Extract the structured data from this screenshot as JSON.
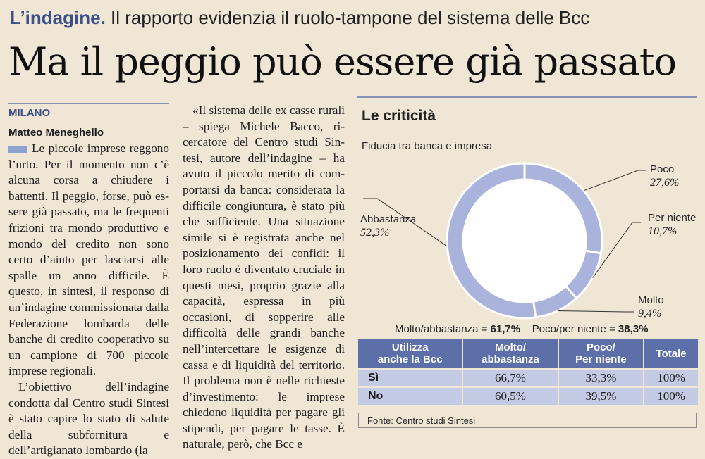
{
  "kicker": {
    "strong": "L’indagine.",
    "text": "Il rapporto evidenzia il ruolo-tampone del sistema delle Bcc"
  },
  "headline": "Ma il peggio può essere già passato",
  "article": {
    "dateline": "MILANO",
    "byline": "Matteo Meneghello",
    "col1": [
      {
        "cls": "first",
        "text": "Le piccole imprese reggo­no l’urto. Per il momento non c’è alcuna corsa a chiudere i battenti. Il peggio, forse, può es­sere già passato, ma le frequen­ti frizioni tra mondo produtti­vo e mondo del credito non so­no certo d’aiuto per lasciarsi al­le spalle un anno difficile. È questo, in sintesi, il responso di un’indagine commissionata dalla Federazione lombarda delle banche di credito coope­rativo su un campione di 700 piccole imprese regionali."
      },
      {
        "cls": "indent",
        "text": "L’obiettivo dell’indagine condotta dal Centro studi Sin­tesi è stato capire lo stato di sa­lute della subfornitura e dell’artigianato lombardo (la"
      }
    ],
    "col2": [
      {
        "cls": "indent",
        "text": "«Il sistema delle ex casse ru­rali – spiega Michele Bacco, ri­cercatore del Centro studi Sin­tesi, autore dell’indagine – ha avuto il piccolo merito di com­portarsi da banca: considera­ta la difficile congiuntura, è stato più che sufficiente. Una situazione simile si è registra­ta anche nel posizionamento dei confidi: il loro ruolo è di­ventato cruciale in questi me­si, proprio grazie alla capaci­tà, espressa in più occasioni, di sopperire alle difficoltà del­le grandi banche nell’intercet­tare le esigenze di cassa e di li­quidità del territorio. Il pro­blema non è nelle richieste d’investimento: le imprese chiedono liquidità per pagare gli stipendi, per pagare le tas­se. È naturale, però, che Bcc e"
      }
    ]
  },
  "infographic": {
    "title": "Le criticità",
    "subtitle": "Fiducia tra banca e impresa",
    "colors": {
      "header": "#5d6fa8",
      "cell": "#c3cbe4",
      "slice": "#a9b3dc"
    },
    "chart_data": {
      "type": "pie",
      "title": "Fiducia tra banca e impresa",
      "slices": [
        {
          "name": "Poco",
          "label": "27,6%",
          "value": 27.6
        },
        {
          "name": "Per niente",
          "label": "10,7%",
          "value": 10.7
        },
        {
          "name": "Molto",
          "label": "9,4%",
          "value": 9.4
        },
        {
          "name": "Abbastanza",
          "label": "52,3%",
          "value": 52.3
        }
      ]
    },
    "summary": {
      "a_label": "Molto/abbastanza =",
      "a_value": "61,7%",
      "b_label": "Poco/per niente =",
      "b_value": "38,3%"
    },
    "table": {
      "headers": [
        [
          "Utilizza",
          "anche la Bcc"
        ],
        [
          "Molto/",
          "abbastanza"
        ],
        [
          "Poco/",
          "Per niente"
        ],
        [
          "Totale"
        ]
      ],
      "rows": [
        {
          "label": "Sì",
          "values": [
            "66,7%",
            "33,3%",
            "100%"
          ]
        },
        {
          "label": "No",
          "values": [
            "60,5%",
            "39,5%",
            "100%"
          ]
        }
      ]
    },
    "source": "Fonte: Centro studi Sintesi"
  }
}
